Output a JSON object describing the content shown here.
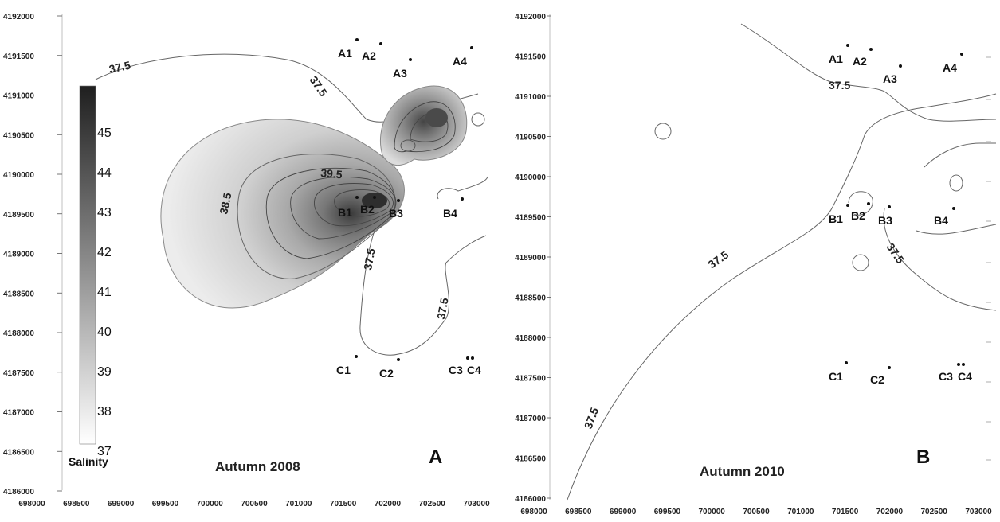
{
  "x_ticks": [
    "698000",
    "698500",
    "699000",
    "699500",
    "700000",
    "700500",
    "701000",
    "701500",
    "702000",
    "702500",
    "703000"
  ],
  "x_ticks_b": [
    "698000",
    "698500",
    "699000",
    "699500",
    "700000",
    "700500",
    "701000",
    "701500",
    "702000",
    "702500",
    "703000"
  ],
  "y_ticks": [
    "4192000",
    "4191500",
    "4191000",
    "4190500",
    "4190000",
    "4189500",
    "4189000",
    "4188500",
    "4188000",
    "4187500",
    "4187000",
    "4186500",
    "4186000"
  ],
  "panel_a": {
    "season": "Autumn 2008",
    "letter": "A",
    "contour_labels": {
      "l1": "37.5",
      "l2": "37.5",
      "l3": "38.5",
      "l4": "39.5",
      "l5": "37.5",
      "l6": "37.5"
    },
    "stations": {
      "A1": "A1",
      "A2": "A2",
      "A3": "A3",
      "A4": "A4",
      "B1": "B1",
      "B2": "B2",
      "B3": "B3",
      "B4": "B4",
      "C1": "C1",
      "C2": "C2",
      "C3": "C3",
      "C4": "C4"
    }
  },
  "panel_b": {
    "season": "Autumn 2010",
    "letter": "B",
    "contour_labels": {
      "l1": "37.5",
      "l2": "37.5",
      "l3": "37.5",
      "l4": "37.5"
    },
    "stations": {
      "A1": "A1",
      "A2": "A2",
      "A3": "A3",
      "A4": "A4",
      "B1": "B1",
      "B2": "B2",
      "B3": "B3",
      "B4": "B4",
      "C1": "C1",
      "C2": "C2",
      "C3": "C3",
      "C4": "C4"
    }
  },
  "legend": {
    "title": "Salinity",
    "labels": [
      "45",
      "44",
      "43",
      "42",
      "41",
      "40",
      "39",
      "38",
      "37"
    ],
    "dark_color": "#1f1f1f",
    "light_color": "#ffffff"
  }
}
